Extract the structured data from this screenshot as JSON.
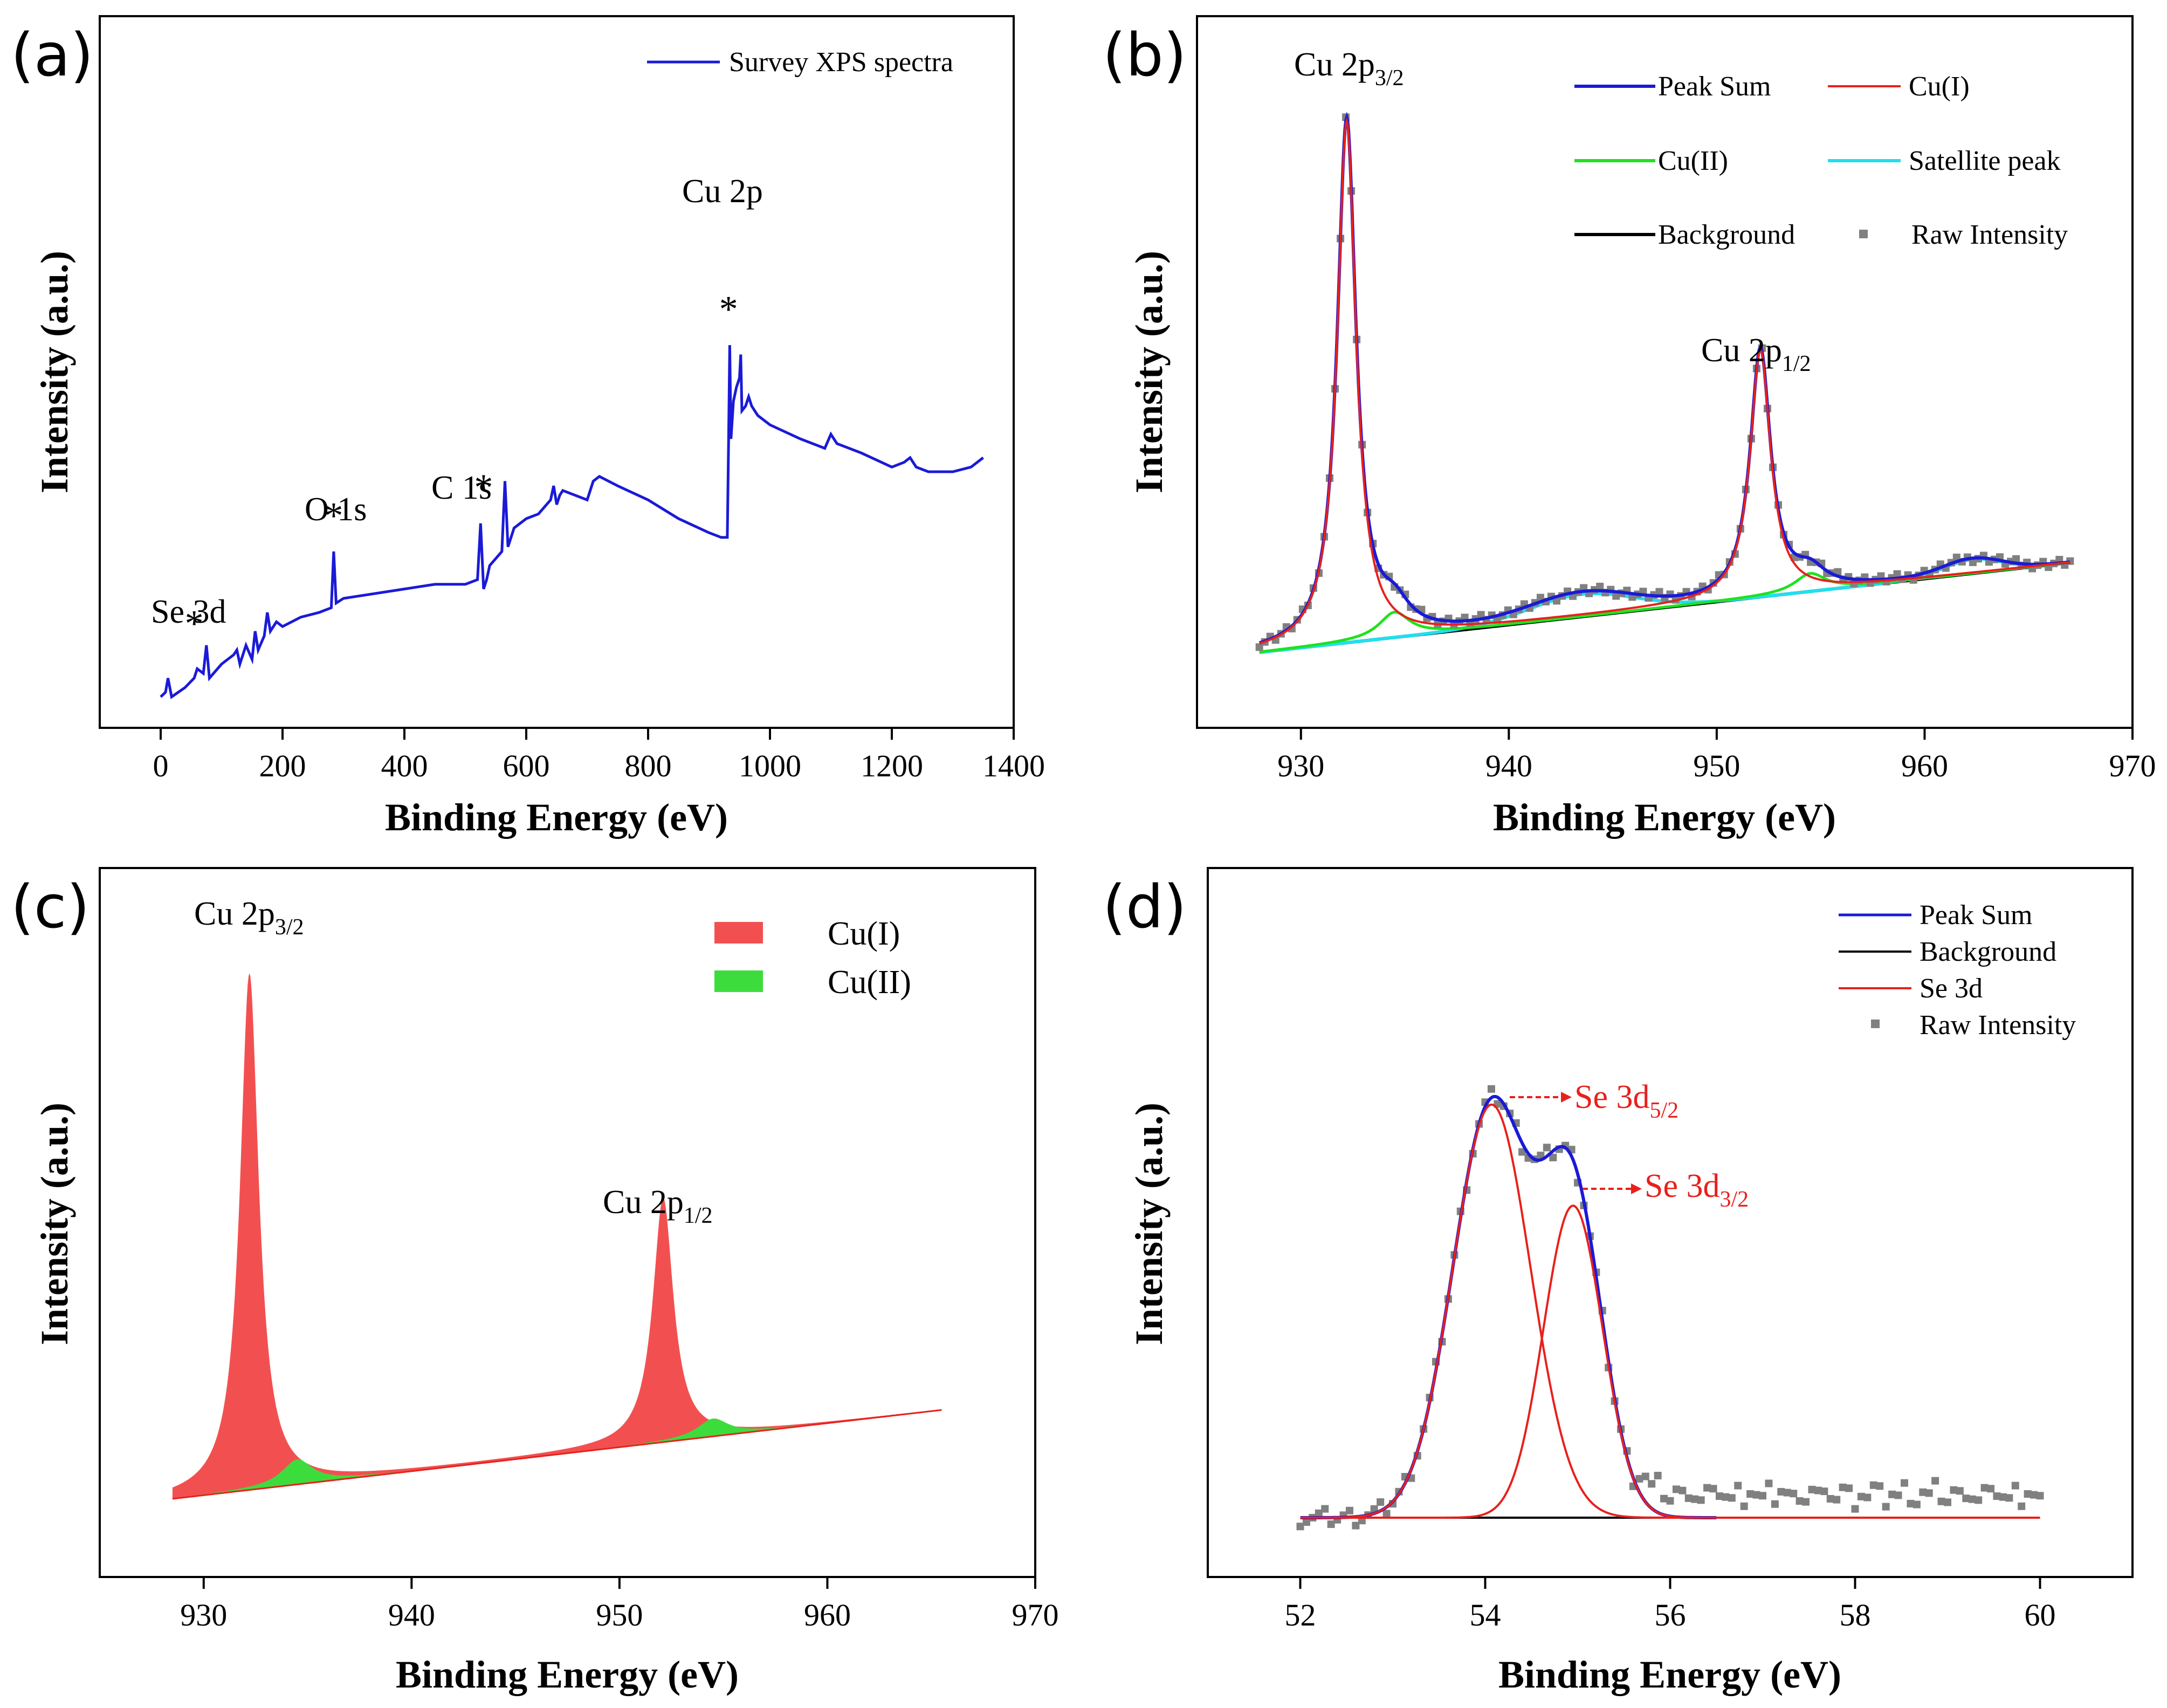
{
  "panels": [
    {
      "letter": "(a)",
      "xlabel": "Binding Energy (eV)",
      "ylabel": "Intensity (a.u.)"
    },
    {
      "letter": "(b)",
      "xlabel": "Binding Energy (eV)",
      "ylabel": "Intensity (a.u.)"
    },
    {
      "letter": "(c)",
      "xlabel": "Binding Energy (eV)",
      "ylabel": "Intensity (a.u.)"
    },
    {
      "letter": "(d)",
      "xlabel": "Binding Energy (eV)",
      "ylabel": "Intensity (a.u.)"
    }
  ],
  "colors": {
    "survey": "#1a1ad8",
    "peak_sum": "#1a1ad8",
    "cu1": "#e8201c",
    "cu2": "#1ee21e",
    "satellite": "#1ee0f0",
    "background": "#000000",
    "raw": "#808080",
    "fill_cu1": "#f25050",
    "fill_cu2": "#3ddc3d"
  },
  "chart_data": [
    {
      "id": "a",
      "type": "line",
      "title": "",
      "xlim": [
        -100,
        1400
      ],
      "xticks": [
        0,
        200,
        400,
        600,
        800,
        1000,
        1200,
        1400
      ],
      "ylim": [
        0,
        100
      ],
      "series": [
        {
          "name": "Survey XPS spectra",
          "x": [
            0,
            8,
            12,
            18,
            40,
            55,
            60,
            70,
            75,
            80,
            100,
            120,
            125,
            130,
            140,
            150,
            155,
            160,
            170,
            175,
            180,
            190,
            200,
            230,
            260,
            280,
            284,
            288,
            300,
            350,
            400,
            450,
            500,
            520,
            525,
            530,
            535,
            540,
            560,
            565,
            570,
            575,
            580,
            600,
            620,
            640,
            645,
            650,
            655,
            660,
            700,
            710,
            720,
            750,
            800,
            850,
            900,
            920,
            930,
            932,
            934,
            936,
            940,
            945,
            950,
            952,
            954,
            960,
            965,
            970,
            980,
            1000,
            1050,
            1090,
            1100,
            1110,
            1150,
            1200,
            1220,
            1230,
            1240,
            1260,
            1300,
            1330,
            1350
          ],
          "y": [
            2,
            3,
            6,
            2,
            4,
            6,
            8,
            7,
            13,
            6,
            9,
            11,
            12,
            9,
            13,
            10,
            16,
            12,
            15,
            20,
            16,
            18,
            17,
            19,
            20,
            21,
            33,
            22,
            23,
            24,
            25,
            26,
            26,
            27,
            39,
            25,
            27,
            30,
            33,
            48,
            34,
            36,
            38,
            40,
            41,
            44,
            47,
            43,
            45,
            46,
            44,
            48,
            49,
            47,
            44,
            40,
            37,
            36,
            36,
            56,
            77,
            57,
            65,
            68,
            70,
            75,
            63,
            64,
            66,
            64,
            62,
            60,
            57,
            55,
            58,
            56,
            54,
            51,
            52,
            53,
            51,
            50,
            50,
            51,
            53
          ]
        }
      ],
      "annotations": [
        "Se 3d",
        "O 1s",
        "C 1s",
        "Cu 2p"
      ],
      "star_positions_eV": [
        55,
        284,
        530,
        932
      ],
      "legend": [
        "Survey XPS spectra"
      ]
    },
    {
      "id": "b",
      "type": "line",
      "xlim": [
        925,
        970
      ],
      "xticks": [
        930,
        940,
        950,
        960,
        970
      ],
      "ylim": [
        0,
        100
      ],
      "peaks": {
        "cu1": [
          {
            "center": 932.2,
            "height": 93,
            "width": 0.55
          },
          {
            "center": 952.1,
            "height": 44,
            "width": 0.6
          }
        ],
        "cu2": [
          {
            "center": 934.5,
            "height": 4.5,
            "width": 0.9
          },
          {
            "center": 954.5,
            "height": 3.2,
            "width": 0.9
          }
        ],
        "satellite": [
          {
            "center": 943.5,
            "height": 4,
            "width": 2.5
          },
          {
            "center": 962.3,
            "height": 2.5,
            "width": 1.4
          }
        ]
      },
      "background": {
        "x_start": 928,
        "x_end": 967,
        "y_start": 0,
        "y_end": 16
      },
      "annotations": [
        "Cu 2p",
        "3/2",
        "Cu 2p",
        "1/2"
      ],
      "legend": [
        "Peak Sum",
        "Cu(I)",
        "Cu(II)",
        "Satellite peak",
        "Background",
        "Raw Intensity"
      ]
    },
    {
      "id": "c",
      "type": "area",
      "xlim": [
        925,
        970
      ],
      "xticks": [
        930,
        940,
        950,
        960,
        970
      ],
      "ylim": [
        0,
        100
      ],
      "peaks": {
        "cu1": [
          {
            "center": 932.2,
            "height": 93,
            "width": 0.55
          },
          {
            "center": 952.1,
            "height": 44,
            "width": 0.6
          }
        ],
        "cu2": [
          {
            "center": 934.5,
            "height": 4.5,
            "width": 0.9
          },
          {
            "center": 954.5,
            "height": 3.2,
            "width": 0.9
          }
        ]
      },
      "background": {
        "x_start": 928.5,
        "x_end": 965.5,
        "y_start": 0,
        "y_end": 16
      },
      "annotations": [
        "Cu 2p",
        "3/2",
        "Cu 2p",
        "1/2"
      ],
      "legend": [
        "Cu(I)",
        "Cu(II)"
      ]
    },
    {
      "id": "d",
      "type": "line",
      "xlim": [
        51,
        61
      ],
      "xticks": [
        52,
        54,
        56,
        58,
        60
      ],
      "ylim": [
        0,
        100
      ],
      "peaks": {
        "se3d": [
          {
            "center": 54.07,
            "height": 94,
            "sigma": 0.42
          },
          {
            "center": 54.95,
            "height": 71,
            "sigma": 0.32
          }
        ]
      },
      "background": {
        "x_start": 52,
        "x_end": 60,
        "y_start": 0,
        "y_end": 0
      },
      "annotations": [
        "Se 3d",
        "5/2",
        "Se 3d",
        "3/2"
      ],
      "legend": [
        "Peak Sum",
        "Background",
        "Se 3d",
        "Raw Intensity"
      ]
    }
  ]
}
